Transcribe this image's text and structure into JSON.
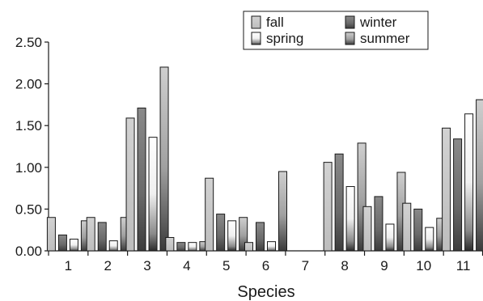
{
  "chart_data": {
    "type": "bar",
    "xlabel": "Species",
    "ylabel": "",
    "ylim": [
      0,
      2.5
    ],
    "yticks": [
      "0.00",
      "0.50",
      "1.00",
      "1.50",
      "2.00",
      "2.50"
    ],
    "ytick_values": [
      0,
      0.5,
      1.0,
      1.5,
      2.0,
      2.5
    ],
    "categories": [
      "1",
      "2",
      "3",
      "4",
      "5",
      "6",
      "7",
      "8",
      "9",
      "10",
      "11"
    ],
    "legend_position": "top-right",
    "grid": false,
    "series": [
      {
        "name": "fall",
        "style": "fall",
        "values": [
          0.4,
          0.4,
          1.59,
          0.16,
          0.87,
          0.1,
          0.0,
          1.06,
          0.53,
          0.57,
          1.47
        ]
      },
      {
        "name": "winter",
        "style": "winter",
        "values": [
          0.19,
          0.34,
          1.71,
          0.1,
          0.44,
          0.34,
          0.0,
          1.16,
          0.65,
          0.5,
          1.34
        ]
      },
      {
        "name": "spring",
        "style": "spring",
        "values": [
          0.14,
          0.12,
          1.36,
          0.1,
          0.36,
          0.11,
          0.0,
          0.77,
          0.32,
          0.28,
          1.64
        ]
      },
      {
        "name": "summer",
        "style": "summer",
        "values": [
          0.36,
          0.4,
          2.2,
          0.11,
          0.4,
          0.95,
          0.0,
          1.29,
          0.94,
          0.39,
          1.81
        ]
      }
    ]
  }
}
